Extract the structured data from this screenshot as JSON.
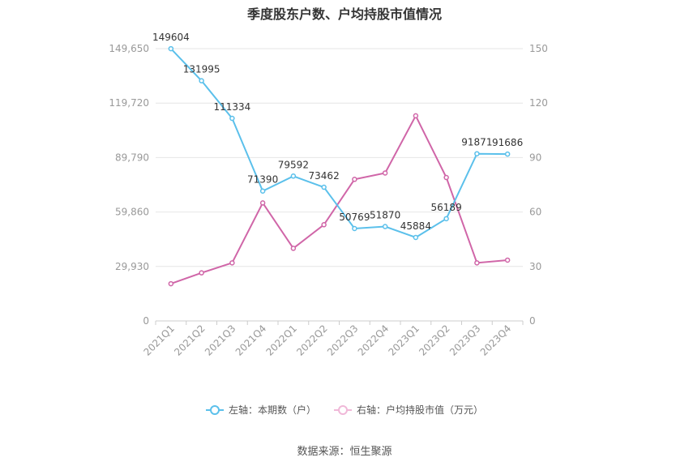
{
  "title": "季度股东户数、户均持股市值情况",
  "source": "数据来源：恒生聚源",
  "colors": {
    "left_series": "#5bc0eb",
    "right_series": "#d066a8",
    "grid": "#e6e6e6",
    "axis_text": "#999999"
  },
  "chart_data": {
    "type": "line",
    "title": "季度股东户数、户均持股市值情况",
    "categories": [
      "2021Q1",
      "2021Q2",
      "2021Q3",
      "2021Q4",
      "2022Q1",
      "2022Q2",
      "2022Q3",
      "2022Q4",
      "2023Q1",
      "2023Q2",
      "2023Q3",
      "2023Q4"
    ],
    "left_axis": {
      "ticks": [
        "0",
        "29,930",
        "59,860",
        "89,790",
        "119,720",
        "149,650"
      ],
      "ylim": [
        0,
        149650
      ]
    },
    "right_axis": {
      "ticks": [
        "0",
        "30",
        "60",
        "90",
        "120",
        "150"
      ],
      "ylim": [
        0,
        150
      ]
    },
    "series": [
      {
        "name": "左轴：本期数（户）",
        "axis": "left",
        "values": [
          149604,
          131995,
          111334,
          71390,
          79592,
          73462,
          50769,
          51870,
          45884,
          56189,
          91871,
          91686
        ],
        "labels": [
          "149604",
          "131995",
          "111334",
          "71390",
          "79592",
          "73462",
          "50769",
          "51870",
          "45884",
          "56189",
          "91871",
          "91686"
        ]
      },
      {
        "name": "右轴：户均持股市值（万元）",
        "axis": "right",
        "values": [
          20.5,
          26.5,
          32,
          65,
          40,
          53,
          78,
          81.5,
          113,
          79,
          32,
          33.5
        ]
      }
    ],
    "grid": true,
    "legend_position": "bottom"
  }
}
